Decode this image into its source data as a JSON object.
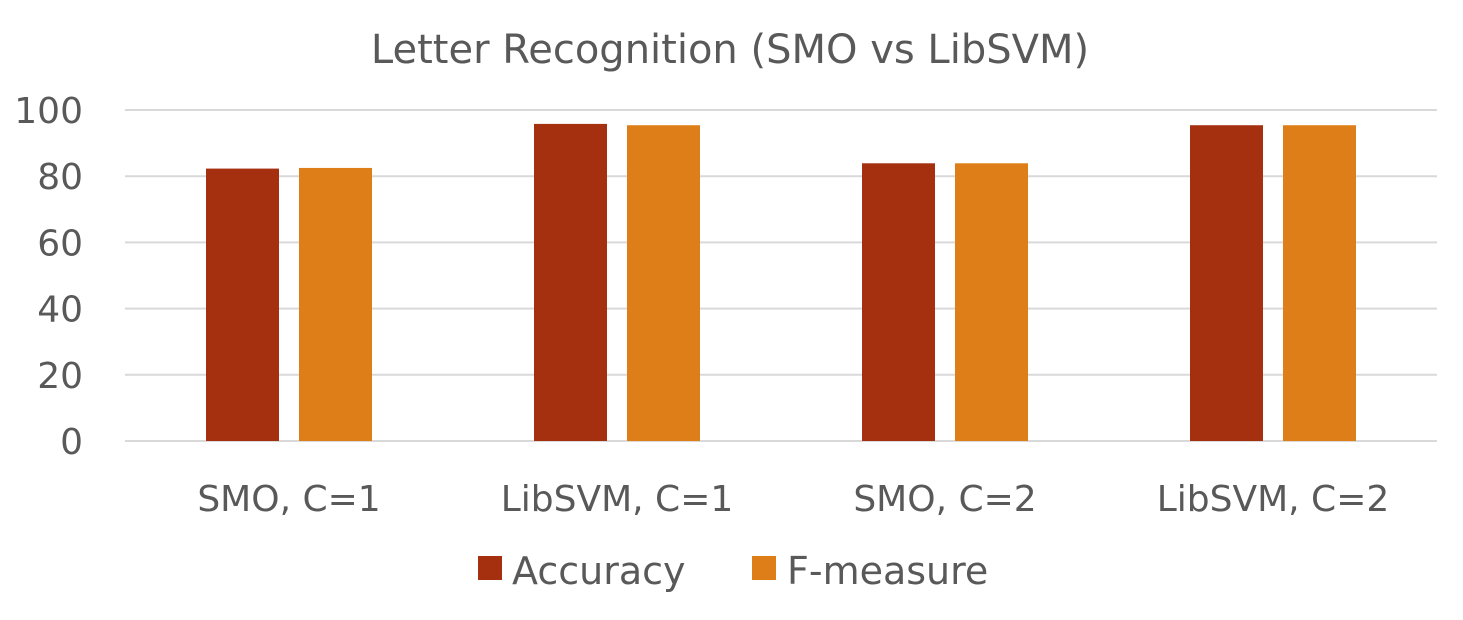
{
  "chart_data": {
    "type": "bar",
    "title": "Letter Recognition (SMO vs LibSVM)",
    "xlabel": "",
    "ylabel": "",
    "categories": [
      "SMO, C=1",
      "LibSVM, C=1",
      "SMO, C=2",
      "LibSVM, C=2"
    ],
    "series": [
      {
        "name": "Accuracy",
        "values": [
          82.3,
          95.8,
          83.9,
          95.4
        ],
        "color": "#a5300f"
      },
      {
        "name": "F-measure",
        "values": [
          82.5,
          95.4,
          83.9,
          95.4
        ],
        "color": "#de7e18"
      }
    ],
    "ylim": [
      0,
      100
    ],
    "yticks": [
      "0",
      "20",
      "40",
      "60",
      "80",
      "100"
    ],
    "grid": true,
    "legend": "bottom"
  }
}
